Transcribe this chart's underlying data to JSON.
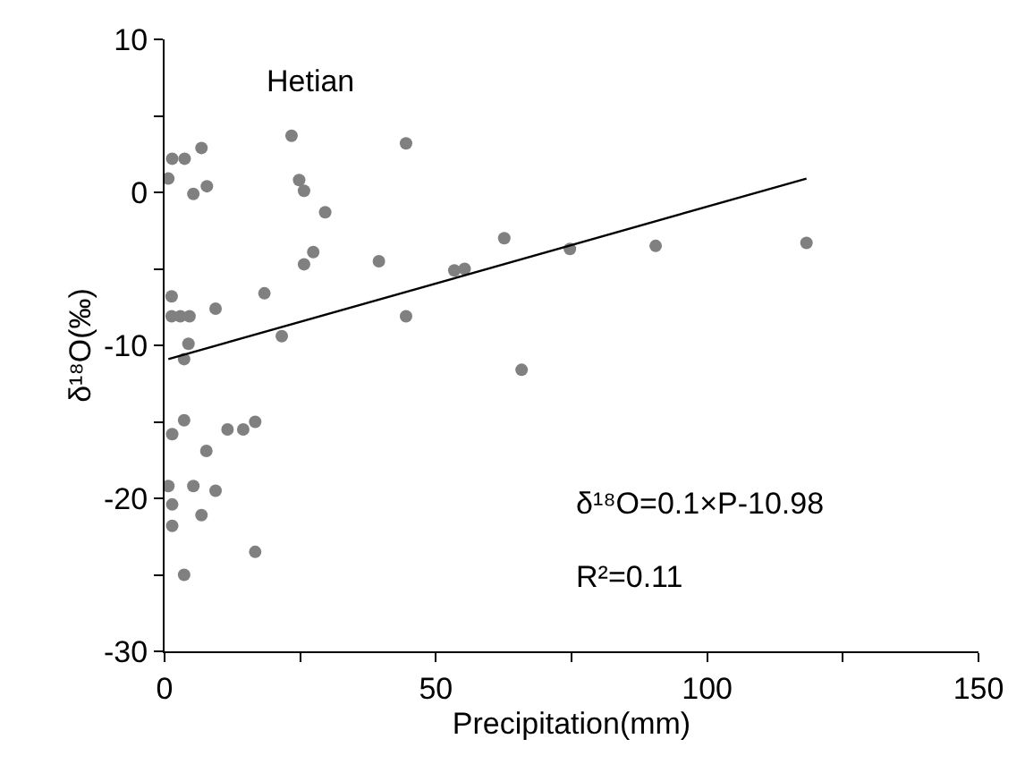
{
  "chart_data": {
    "type": "scatter",
    "xlabel": "Precipitation(mm)",
    "ylabel": "δ¹⁸O(‰)",
    "xlim": [
      0,
      150
    ],
    "ylim": [
      -30,
      10
    ],
    "xticks": [
      0,
      {
        "value": 25,
        "label": null
      },
      50,
      {
        "value": 75,
        "label": null
      },
      100,
      {
        "value": 125,
        "label": null
      },
      150
    ],
    "yticks": [
      -30,
      {
        "value": -25,
        "label": null
      },
      -20,
      {
        "value": -15,
        "label": null
      },
      -10,
      {
        "value": -5,
        "label": null
      },
      0,
      {
        "value": 5,
        "label": null
      },
      10
    ],
    "marker": "circle",
    "annotations": [
      "Hetian",
      "δ¹⁸O=0.1×P-10.98",
      "R²=0.11"
    ],
    "series": [
      {
        "color": "#808080",
        "x": [
          0.7,
          1.4,
          3.7,
          6.8,
          5.3,
          7.8,
          23.4,
          24.8,
          25.7,
          29.6,
          44.5,
          27.4,
          25.7,
          39.5,
          1.3,
          1.3,
          2.9,
          4.6,
          9.4,
          18.4,
          44.5,
          21.6,
          4.4,
          3.6,
          3.6,
          1.4,
          7.7,
          11.6,
          14.5,
          16.7,
          0.7,
          1.4,
          5.3,
          9.4,
          6.8,
          1.4,
          16.7,
          3.6,
          53.4,
          55.3,
          62.6,
          74.7,
          90.5,
          118.3,
          65.8
        ],
        "values": [
          0.9,
          2.2,
          2.2,
          2.9,
          -0.1,
          0.4,
          3.7,
          0.8,
          0.1,
          -1.3,
          3.2,
          -3.9,
          -4.7,
          -4.5,
          -6.8,
          -8.1,
          -8.1,
          -8.1,
          -7.6,
          -6.6,
          -8.1,
          -9.4,
          -9.9,
          -10.9,
          -14.9,
          -15.8,
          -16.9,
          -15.5,
          -15.5,
          -15.0,
          -19.2,
          -20.4,
          -19.2,
          -19.5,
          -21.1,
          -21.8,
          -23.5,
          -25.0,
          -5.1,
          -5.0,
          -3.0,
          -3.7,
          -3.5,
          -3.3,
          -11.6
        ]
      },
      {
        "type": "line",
        "color": "#000000",
        "line_style": "solid",
        "marker": "none",
        "x": [
          0.7,
          118.3
        ],
        "values": [
          -10.9,
          0.9
        ]
      }
    ]
  }
}
